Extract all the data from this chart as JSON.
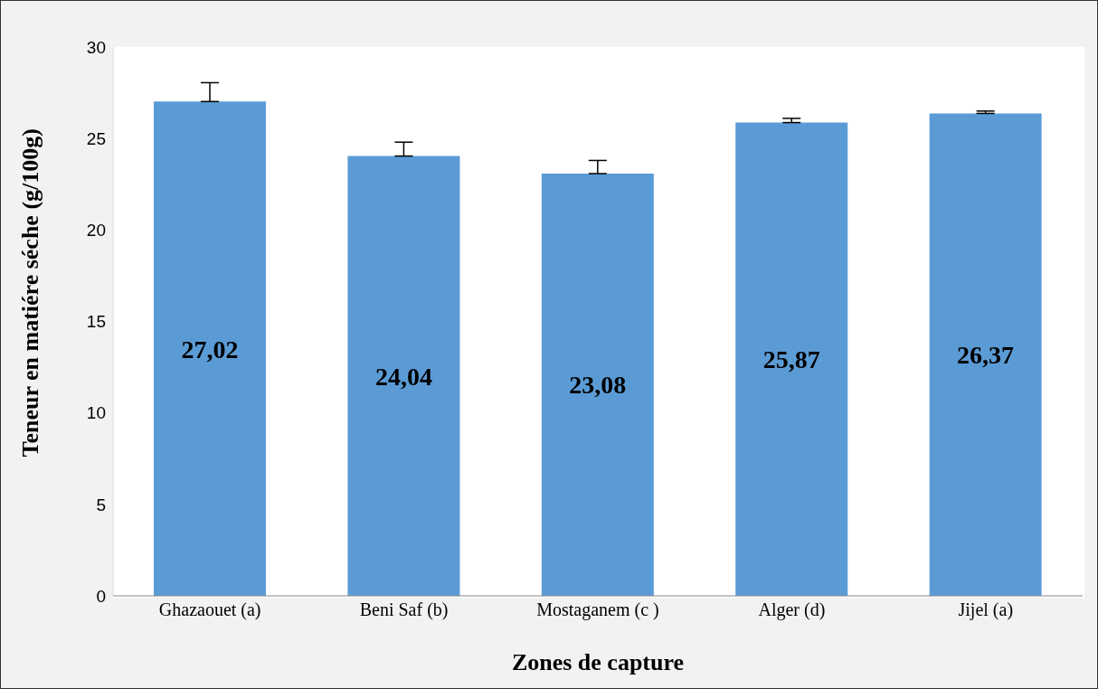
{
  "chart_data": {
    "type": "bar",
    "xlabel": "Zones de capture",
    "ylabel": "Teneur en matiére séche (g/100g)",
    "categories": [
      "Ghazaouet (a)",
      "Beni Saf (b)",
      "Mostaganem (c )",
      "Alger (d)",
      "Jijel (a)"
    ],
    "values": [
      27.02,
      24.04,
      23.08,
      25.87,
      26.37
    ],
    "value_labels": [
      "27,02",
      "24,04",
      "23,08",
      "25,87",
      "26,37"
    ],
    "errors": [
      [
        27.02,
        28.05
      ],
      [
        24.04,
        24.8
      ],
      [
        23.08,
        23.8
      ],
      [
        25.87,
        26.1
      ],
      [
        26.37,
        26.5
      ]
    ],
    "color": "#5b9bd5",
    "ylim": [
      0,
      30
    ],
    "yticks": [
      0,
      5,
      10,
      15,
      20,
      25,
      30
    ],
    "legend": false
  }
}
